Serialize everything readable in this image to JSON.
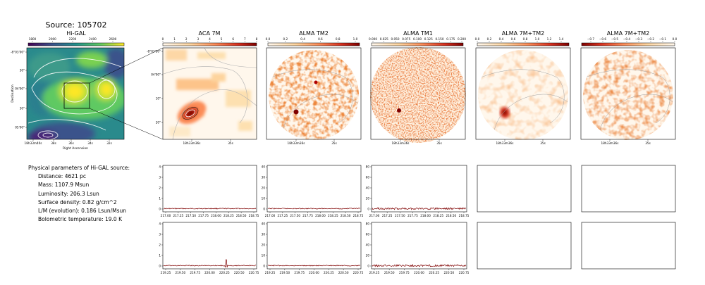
{
  "figure": {
    "title": "Source: 105702"
  },
  "info": {
    "heading": "Physical parameters of Hi-GAL source:",
    "lines": [
      "Distance: 4621 pc",
      "Mass: 1107.9 Msun",
      "Luminosity: 206.3 Lsun",
      "Surface density: 0.82 g/cm^2",
      "L/M (evolution): 0.186 Lsun/Msun",
      "Bolometric temperature: 19.0 K"
    ]
  },
  "colors": {
    "viridis": [
      "#440154",
      "#3b528b",
      "#21918c",
      "#5ec962",
      "#fde725"
    ],
    "orrd": [
      "#fff7ec",
      "#fdd49e",
      "#fc8d59",
      "#d7301f",
      "#7f0000"
    ],
    "spectrum_line": "#7f0000"
  },
  "chart_data": [
    {
      "type": "heatmap",
      "panel": "higal",
      "title": "Hi-GAL",
      "colorbar_ticks": [
        "1800",
        "2000",
        "2200",
        "2400",
        "2600"
      ],
      "xticks": [
        "18h33m40s",
        "38s",
        "36s",
        "34s",
        "32s"
      ],
      "yticks": [
        "-8°03'00\"",
        "30\"",
        "04'00\"",
        "30\"",
        "05'00\""
      ],
      "xlabel": "Right Ascension",
      "ylabel": "Declination"
    },
    {
      "type": "heatmap",
      "panel": "aca7m",
      "title": "ACA 7M",
      "colorbar_ticks": [
        "0",
        "1",
        "2",
        "3",
        "4",
        "5",
        "6",
        "7",
        "8"
      ],
      "xticks": [
        "18h33m36s",
        "35s"
      ],
      "yticks": [
        "-8°03'50\"",
        "04'00\"",
        "10\"",
        "20\""
      ]
    },
    {
      "type": "heatmap",
      "panel": "almatm2",
      "title": "ALMA TM2",
      "colorbar_ticks": [
        "0.0",
        "0.2",
        "0.4",
        "0.6",
        "0.8",
        "1.0"
      ],
      "xticks": [
        "18h33m36s",
        "35s"
      ]
    },
    {
      "type": "heatmap",
      "panel": "almatm1",
      "title": "ALMA TM1",
      "colorbar_ticks": [
        "0.000",
        "0.025",
        "0.050",
        "0.075",
        "0.100",
        "0.125",
        "0.150",
        "0.175",
        "0.200"
      ],
      "xticks": [
        "18h33m36s",
        "35s"
      ]
    },
    {
      "type": "heatmap",
      "panel": "alma7mtm2",
      "title": "ALMA 7M+TM2",
      "colorbar_ticks": [
        "0.0",
        "0.2",
        "0.4",
        "0.6",
        "0.8",
        "1.0",
        "1.2",
        "1.4"
      ],
      "xticks": [
        "18h33m36s",
        "35s"
      ]
    },
    {
      "type": "heatmap",
      "panel": "alma7mtm2b",
      "title": "ALMA 7M+TM2",
      "colorbar_ticks": [
        "−0.7",
        "−0.6",
        "−0.5",
        "−0.4",
        "−0.3",
        "−0.2",
        "−0.1",
        "0.0"
      ],
      "xticks": [
        "18h33m36s",
        "35s"
      ]
    },
    {
      "type": "line",
      "panel": "spec-aca-upper",
      "yticks": [
        "0",
        "1",
        "2",
        "3",
        "4"
      ],
      "xticks": [
        "217.00",
        "217.25",
        "217.50",
        "217.75",
        "218.00",
        "218.25",
        "218.50",
        "218.75"
      ]
    },
    {
      "type": "line",
      "panel": "spec-tm2-upper",
      "yticks": [
        "0",
        "10",
        "20",
        "30",
        "40"
      ],
      "xticks": [
        "217.00",
        "217.25",
        "217.50",
        "217.75",
        "218.00",
        "218.25",
        "218.50",
        "218.75"
      ]
    },
    {
      "type": "line",
      "panel": "spec-tm1-upper",
      "yticks": [
        "0",
        "20",
        "40",
        "60",
        "80"
      ],
      "xticks": [
        "217.00",
        "217.25",
        "217.50",
        "217.75",
        "218.00",
        "218.25",
        "218.50",
        "218.75"
      ]
    },
    {
      "type": "line",
      "panel": "spec-aca-lower",
      "yticks": [
        "0",
        "1",
        "2",
        "3",
        "4"
      ],
      "xticks": [
        "219.25",
        "219.50",
        "219.75",
        "220.00",
        "220.25",
        "220.50",
        "220.75"
      ],
      "spike_at": 220.3
    },
    {
      "type": "line",
      "panel": "spec-tm2-lower",
      "yticks": [
        "0",
        "10",
        "20",
        "30",
        "40"
      ],
      "xticks": [
        "219.25",
        "219.50",
        "219.75",
        "220.00",
        "220.25",
        "220.50",
        "220.75"
      ]
    },
    {
      "type": "line",
      "panel": "spec-tm1-lower",
      "yticks": [
        "0",
        "20",
        "40",
        "60",
        "80"
      ],
      "xticks": [
        "219.25",
        "219.50",
        "219.75",
        "220.00",
        "220.25",
        "220.50",
        "220.75"
      ]
    }
  ]
}
